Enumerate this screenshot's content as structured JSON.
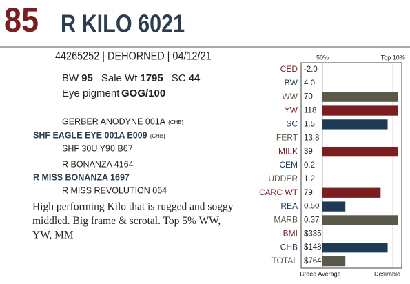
{
  "header": {
    "lot": "85",
    "name": "R KILO 6021",
    "id_line": "44265252 | DEHORNED | 04/12/21"
  },
  "stats": [
    {
      "label": "BW",
      "value": 95
    },
    {
      "label": "Sale Wt",
      "value": 1795
    },
    {
      "label": "SC",
      "value": 44
    }
  ],
  "eye_pigment": {
    "label": "Eye pigment",
    "value": "GOG/100"
  },
  "pedigree": [
    {
      "name": "GERBER ANODYNE 001A",
      "tag": "{CHB}"
    },
    {
      "name": "SHF EAGLE EYE 001A E009",
      "tag": "{CHB}"
    },
    {
      "name": "SHF 30U Y90 B67"
    },
    {
      "name": "R BONANZA 4164"
    },
    {
      "name": "R MISS BONANZA 1697"
    },
    {
      "name": "R MISS REVOLUTION 064"
    }
  ],
  "description": [
    "High performing Kilo that is rugged and soggy",
    "middled. Big frame & scrotal. Top 5% WW,",
    "YW, MM"
  ],
  "chart_data": {
    "type": "bar",
    "categories": [
      "CED",
      "BW",
      "WW",
      "YW",
      "SC",
      "FERT",
      "MILK",
      "CEM",
      "UDDER",
      "CARC WT",
      "REA",
      "MARB",
      "BMI",
      "CHB",
      "TOTAL"
    ],
    "epd_values": [
      "-2.0",
      "4.0",
      "70",
      "118",
      "1.5",
      "13.8",
      "39",
      "0.2",
      "1.2",
      "79",
      "0.50",
      "0.37",
      "$335",
      "$148",
      "$764"
    ],
    "colors": [
      "#7a1e22",
      "#1e3a55",
      "#5a5848",
      "#7a1e22",
      "#1e3a55",
      "#5a5848",
      "#7a1e22",
      "#1e3a55",
      "#5a5848",
      "#7a1e22",
      "#1e3a55",
      "#5a5848",
      "#7a1e22",
      "#1e3a55",
      "#5a5848"
    ],
    "values": [
      null,
      null,
      7,
      7,
      13,
      null,
      7,
      null,
      null,
      17,
      37,
      7,
      null,
      13,
      37
    ],
    "xlim": [
      50,
      5
    ],
    "xticks": [
      {
        "value": 50,
        "label": "50%"
      },
      {
        "value": 10,
        "label": "Top 10%"
      }
    ],
    "x_left_label": "Breed Average",
    "x_right_label": "Desirable"
  }
}
